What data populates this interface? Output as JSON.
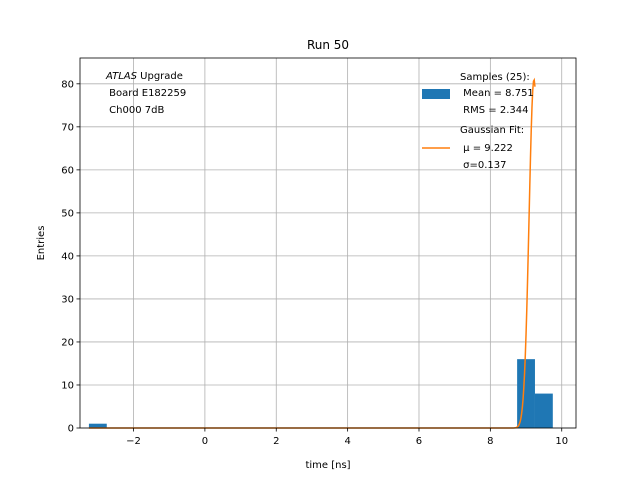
{
  "chart_data": {
    "type": "bar",
    "title": "Run 50",
    "xlabel": "time [ns]",
    "ylabel": "Entries",
    "xlim": [
      -3.5,
      10.4
    ],
    "ylim": [
      0,
      86
    ],
    "grid": true,
    "legend_position": "top-right",
    "x_ticks": [
      -2,
      0,
      2,
      4,
      6,
      8,
      10
    ],
    "x_tick_labels": [
      "−2",
      "0",
      "2",
      "4",
      "6",
      "8",
      "10"
    ],
    "y_ticks": [
      0,
      10,
      20,
      30,
      40,
      50,
      60,
      70,
      80
    ],
    "y_tick_labels": [
      "0",
      "10",
      "20",
      "30",
      "40",
      "50",
      "60",
      "70",
      "80"
    ],
    "histogram": {
      "name": "Samples (25):",
      "color": "#1f77b4",
      "bins": [
        {
          "x0": -3.25,
          "x1": -2.75,
          "count": 1
        },
        {
          "x0": 8.75,
          "x1": 9.25,
          "count": 16
        },
        {
          "x0": 9.25,
          "x1": 9.75,
          "count": 8
        }
      ],
      "stats": [
        " Mean = 8.751",
        " RMS = 2.344"
      ]
    },
    "fit": {
      "name": "Gaussian Fit:",
      "color": "#ff7f0e",
      "mu": 9.222,
      "sigma": 0.137,
      "amplitude": 81,
      "x_range": [
        -3.25,
        9.25
      ],
      "params": [
        " μ = 9.222",
        " σ=0.137"
      ]
    },
    "annotation": {
      "atlas": "ATLAS",
      "upgrade": " Upgrade",
      "lines": [
        " Board E182259",
        " Ch000 7dB"
      ]
    }
  }
}
